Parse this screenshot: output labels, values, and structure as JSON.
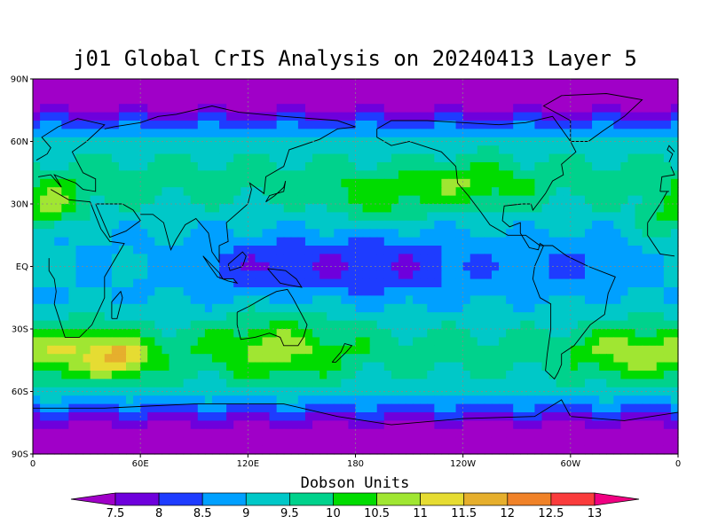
{
  "chart_data": {
    "type": "heatmap",
    "title": "j01 Global CrIS Analysis on 20240413 Layer 5",
    "colorbar_label": "Dobson Units",
    "lat_ticks": [
      "90N",
      "60N",
      "30N",
      "EQ",
      "30S",
      "60S",
      "90S"
    ],
    "lon_ticks": [
      "0",
      "60E",
      "120E",
      "180",
      "120W",
      "60W",
      "0"
    ],
    "colorbar_levels": [
      "7.5",
      "8",
      "8.5",
      "9",
      "9.5",
      "10",
      "10.5",
      "11",
      "11.5",
      "12",
      "12.5",
      "13"
    ],
    "colorbar_colors": [
      "#a000c8",
      "#6e00dc",
      "#1e3cff",
      "#00a0ff",
      "#00c8c8",
      "#00d28c",
      "#00dc00",
      "#a0e632",
      "#e6dc32",
      "#e6af2d",
      "#f08228",
      "#fa3c3c",
      "#f00082"
    ],
    "colorbar_extend": "both",
    "grid": "dotted",
    "value_range": [
      7.5,
      13
    ]
  }
}
